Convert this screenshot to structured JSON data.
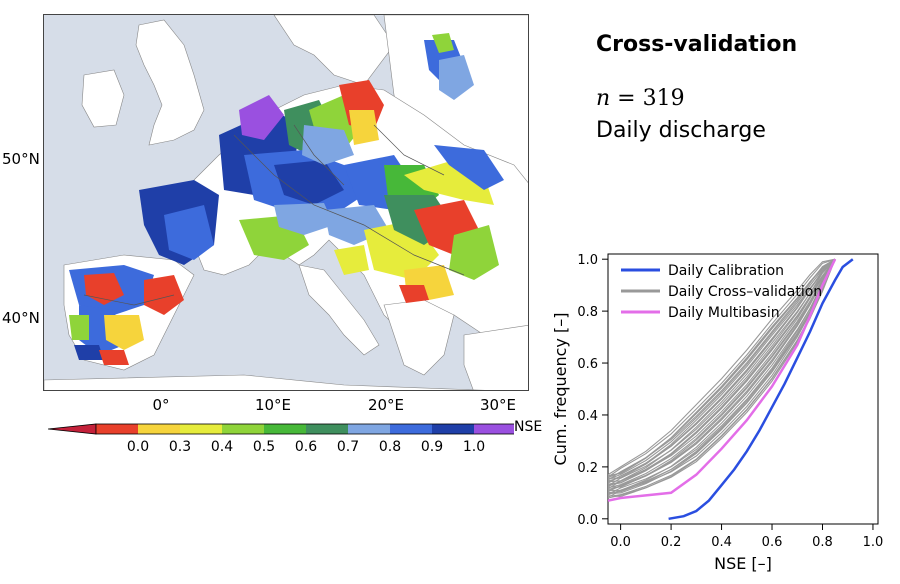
{
  "map": {
    "lat_labels": [
      "50°N",
      "40°N"
    ],
    "lon_labels": [
      "0°",
      "10°E",
      "20°E",
      "30°E"
    ],
    "colorbar": {
      "unit": "NSE",
      "ticks": [
        "0.0",
        "0.3",
        "0.4",
        "0.5",
        "0.6",
        "0.7",
        "0.8",
        "0.9",
        "1.0"
      ],
      "colors": [
        "#c4213a",
        "#e8402b",
        "#f6d43c",
        "#e6ec3c",
        "#8fd43a",
        "#47b839",
        "#3f8f5e",
        "#7fa6e2",
        "#3d6bdc",
        "#1f3fa8",
        "#9a50e0"
      ]
    }
  },
  "title": "Cross-validation",
  "n_symbol": "n = ",
  "n_value": "319",
  "subtitle": "Daily discharge",
  "chart_data": {
    "type": "line",
    "xlabel": "NSE [–]",
    "ylabel": "Cum. frequency [–]",
    "xlim": [
      -0.05,
      1.02
    ],
    "ylim": [
      -0.02,
      1.02
    ],
    "x_ticks": [
      "0.0",
      "0.2",
      "0.4",
      "0.6",
      "0.8",
      "1.0"
    ],
    "y_ticks": [
      "0.0",
      "0.2",
      "0.4",
      "0.6",
      "0.8",
      "1.0"
    ],
    "legend_placement": "top-left",
    "series": [
      {
        "name": "Daily Calibration",
        "color": "#2a4ee0",
        "x": [
          0.19,
          0.25,
          0.3,
          0.35,
          0.4,
          0.45,
          0.5,
          0.55,
          0.6,
          0.65,
          0.7,
          0.75,
          0.8,
          0.85,
          0.88,
          0.92
        ],
        "y": [
          0.0,
          0.01,
          0.03,
          0.07,
          0.13,
          0.19,
          0.26,
          0.34,
          0.43,
          0.52,
          0.62,
          0.72,
          0.83,
          0.92,
          0.97,
          1.0
        ]
      },
      {
        "name": "Daily Cross–validation",
        "color": "#999999",
        "band": true,
        "x_lower": [
          -0.05,
          0.0,
          0.1,
          0.2,
          0.3,
          0.4,
          0.5,
          0.6,
          0.7,
          0.75,
          0.8,
          0.85
        ],
        "y_upper": [
          0.17,
          0.19,
          0.25,
          0.33,
          0.43,
          0.53,
          0.64,
          0.76,
          0.87,
          0.93,
          0.98,
          1.0
        ],
        "y_lower": [
          0.08,
          0.09,
          0.12,
          0.16,
          0.22,
          0.31,
          0.41,
          0.53,
          0.68,
          0.77,
          0.88,
          1.0
        ]
      },
      {
        "name": "Daily Multibasin",
        "color": "#e36ee8",
        "x": [
          -0.05,
          0.0,
          0.1,
          0.2,
          0.3,
          0.4,
          0.5,
          0.6,
          0.7,
          0.75,
          0.8,
          0.85
        ],
        "y": [
          0.07,
          0.08,
          0.09,
          0.1,
          0.17,
          0.27,
          0.38,
          0.51,
          0.67,
          0.78,
          0.9,
          1.0
        ]
      }
    ]
  }
}
